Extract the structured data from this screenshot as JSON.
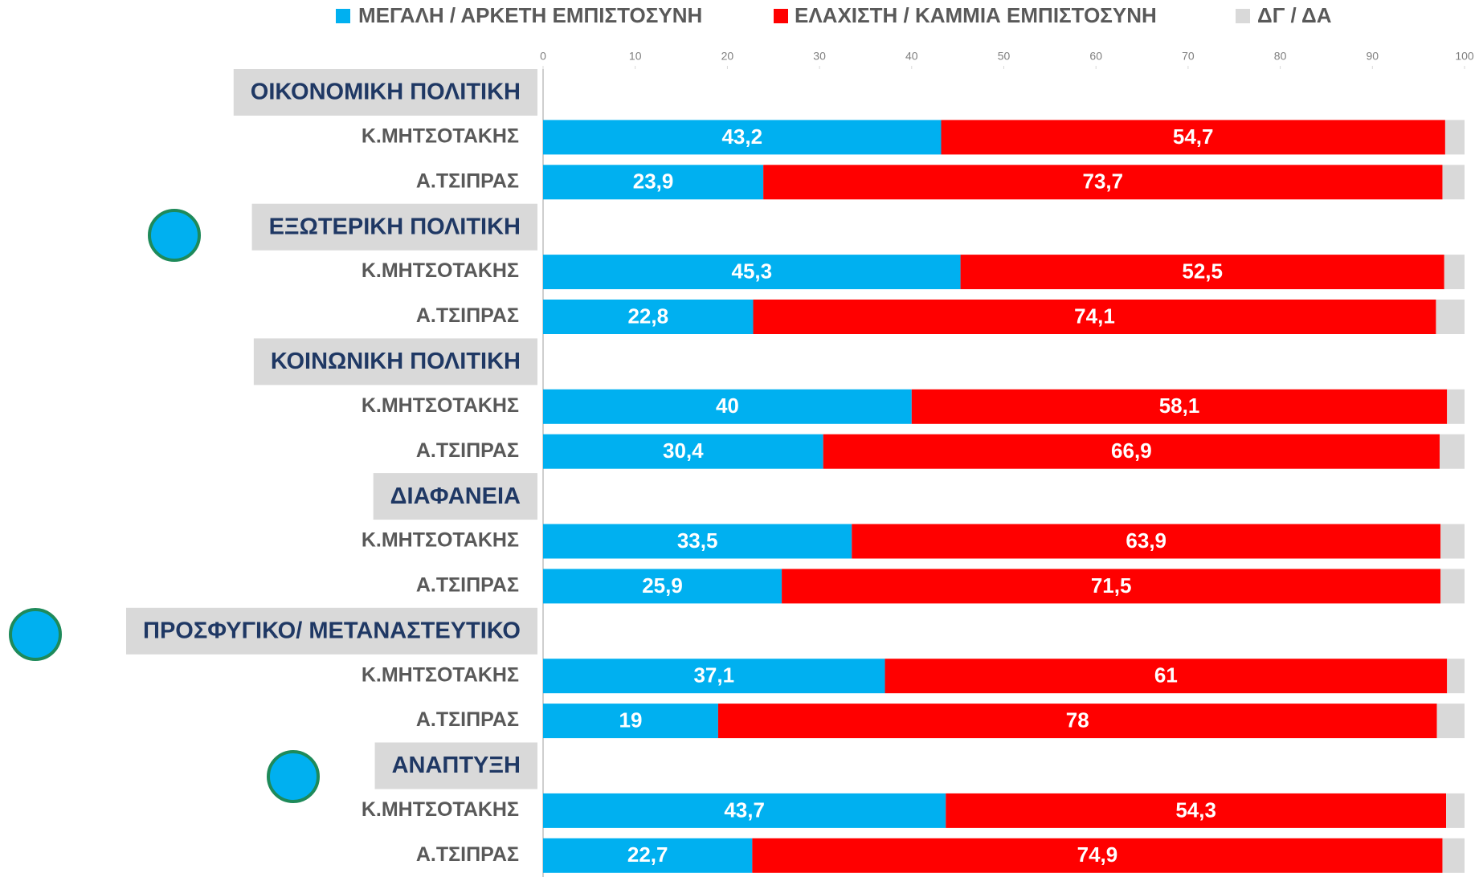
{
  "chart_data": {
    "type": "stacked-bar-horizontal",
    "groups": [
      "ΟΙΚΟΝΟΜΙΚΗ ΠΟΛΙΤΙΚΗ",
      "ΕΞΩΤΕΡΙΚΗ ΠΟΛΙΤΙΚΗ",
      "ΚΟΙΝΩΝΙΚΗ ΠΟΛΙΤΙΚΗ",
      "ΔΙΑΦΑΝΕΙΑ",
      "ΠΡΟΣΦΥΓΙΚΟ/ ΜΕΤΑΝΑΣΤΕΥΤΙΚΟ",
      "ΑΝΑΠΤΥΞΗ"
    ],
    "categories": [
      "Κ.ΜΗΤΣΟΤΑΚΗΣ",
      "Α.ΤΣΙΠΡΑΣ",
      "Κ.ΜΗΤΣΟΤΑΚΗΣ",
      "Α.ΤΣΙΠΡΑΣ",
      "Κ.ΜΗΤΣΟΤΑΚΗΣ",
      "Α.ΤΣΙΠΡΑΣ",
      "Κ.ΜΗΤΣΟΤΑΚΗΣ",
      "Α.ΤΣΙΠΡΑΣ",
      "Κ.ΜΗΤΣΟΤΑΚΗΣ",
      "Α.ΤΣΙΠΡΑΣ",
      "Κ.ΜΗΤΣΟΤΑΚΗΣ",
      "Α.ΤΣΙΠΡΑΣ"
    ],
    "series": [
      {
        "name": "ΜΕΓΑΛΗ / ΑΡΚΕΤΗ ΕΜΠΙΣΤΟΣΥΝΗ",
        "color": "#00b0f0",
        "values": [
          43.2,
          23.9,
          45.3,
          22.8,
          40,
          30.4,
          33.5,
          25.9,
          37.1,
          19,
          43.7,
          22.7
        ],
        "value_labels": [
          "43,2",
          "23,9",
          "45,3",
          "22,8",
          "40",
          "30,4",
          "33,5",
          "25,9",
          "37,1",
          "19",
          "43,7",
          "22,7"
        ]
      },
      {
        "name": "ΕΛΑΧΙΣΤΗ / ΚΑΜΜΙΑ ΕΜΠΙΣΤΟΣΥΝΗ",
        "color": "#ff0000",
        "values": [
          54.7,
          73.7,
          52.5,
          74.1,
          58.1,
          66.9,
          63.9,
          71.5,
          61,
          78,
          54.3,
          74.9
        ],
        "value_labels": [
          "54,7",
          "73,7",
          "52,5",
          "74,1",
          "58,1",
          "66,9",
          "63,9",
          "71,5",
          "61",
          "78",
          "54,3",
          "74,9"
        ]
      },
      {
        "name": "ΔΓ / ΔΑ",
        "color": "#d9d9d9",
        "values": [
          2.1,
          2.4,
          2.2,
          3.1,
          1.9,
          2.7,
          2.6,
          2.6,
          1.9,
          3,
          2,
          2.4
        ]
      }
    ],
    "xlim": [
      0,
      100
    ],
    "xticks": [
      0,
      10,
      20,
      30,
      40,
      50,
      60,
      70,
      80,
      90,
      100
    ]
  }
}
